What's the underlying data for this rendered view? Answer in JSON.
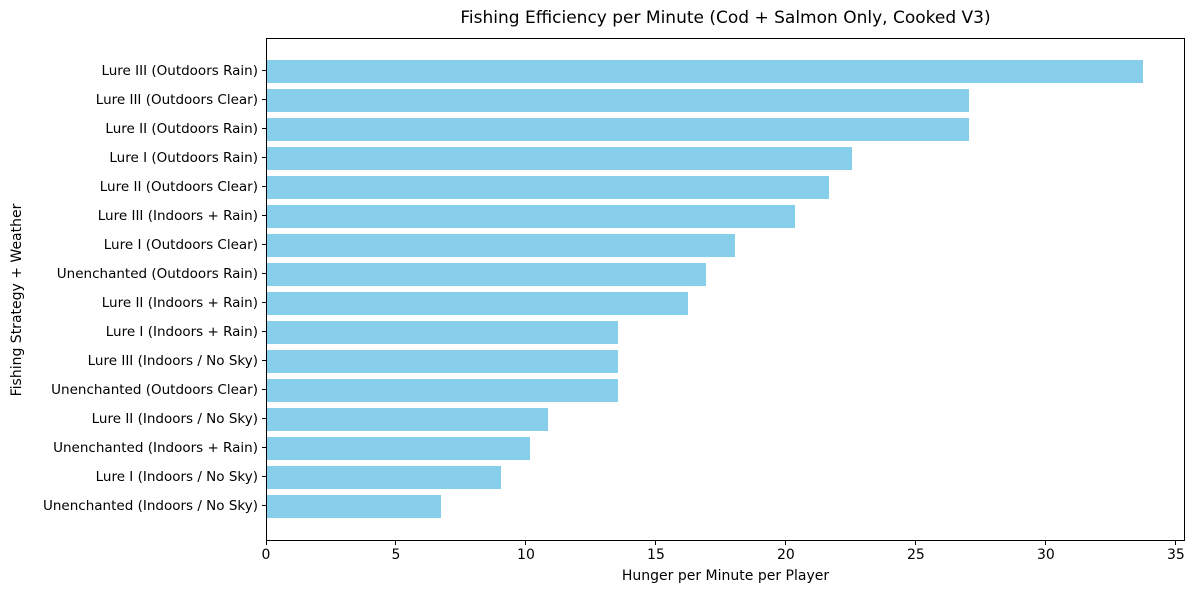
{
  "chart_data": {
    "type": "bar",
    "orientation": "horizontal",
    "title": "Fishing Efficiency per Minute (Cod + Salmon Only, Cooked V3)",
    "xlabel": "Hunger per Minute per Player",
    "ylabel": "Fishing Strategy + Weather",
    "categories": [
      "Lure III (Outdoors Rain)",
      "Lure III (Outdoors Clear)",
      "Lure II (Outdoors Rain)",
      "Lure I (Outdoors Rain)",
      "Lure II (Outdoors Clear)",
      "Lure III (Indoors + Rain)",
      "Lure I (Outdoors Clear)",
      "Unenchanted (Outdoors Rain)",
      "Lure II (Indoors + Rain)",
      "Lure I (Indoors + Rain)",
      "Lure III (Indoors / No Sky)",
      "Unenchanted (Outdoors Clear)",
      "Lure II (Indoors / No Sky)",
      "Unenchanted (Indoors + Rain)",
      "Lure I (Indoors / No Sky)",
      "Unenchanted (Indoors / No Sky)"
    ],
    "values": [
      33.7,
      27.0,
      27.0,
      22.5,
      21.6,
      20.3,
      18.0,
      16.9,
      16.2,
      13.5,
      13.5,
      13.5,
      10.8,
      10.1,
      9.0,
      6.7
    ],
    "xticks": [
      0,
      5,
      10,
      15,
      20,
      25,
      30,
      35
    ],
    "xlim": [
      0,
      35.35
    ],
    "bar_color": "#87ceeb",
    "grid": false,
    "legend_position": "none"
  }
}
